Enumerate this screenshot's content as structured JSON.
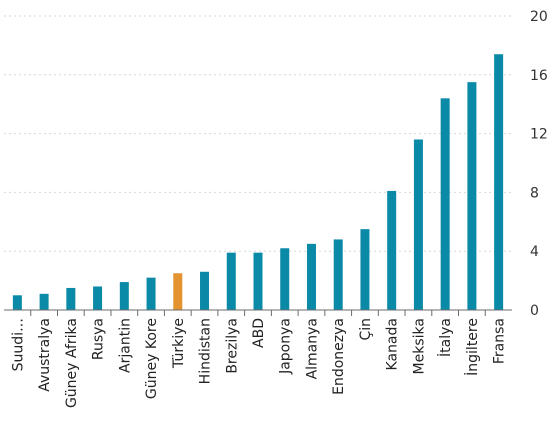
{
  "chart_data": {
    "type": "bar",
    "categories": [
      "Suudi…",
      "Avustralya",
      "Güney Afrika",
      "Rusya",
      "Arjantin",
      "Güney Kore",
      "Türkiye",
      "Hindistan",
      "Brezilya",
      "ABD",
      "Japonya",
      "Almanya",
      "Endonezya",
      "Çin",
      "Kanada",
      "Meksika",
      "İtalya",
      "İngiltere",
      "Fransa"
    ],
    "values": [
      1.0,
      1.1,
      1.5,
      1.6,
      1.9,
      2.2,
      2.5,
      2.6,
      3.9,
      3.9,
      4.2,
      4.5,
      4.8,
      5.5,
      8.1,
      11.6,
      14.4,
      15.5,
      17.4
    ],
    "highlight_category": "Türkiye",
    "colors": {
      "bar": "#0b8aa8",
      "highlight": "#e3932f"
    },
    "yticks": [
      "0",
      "4",
      "8",
      "12",
      "16",
      "20"
    ],
    "ylim": [
      0,
      20
    ],
    "y_axis_side": "right",
    "grid": true,
    "title": "",
    "xlabel": "",
    "ylabel": ""
  }
}
